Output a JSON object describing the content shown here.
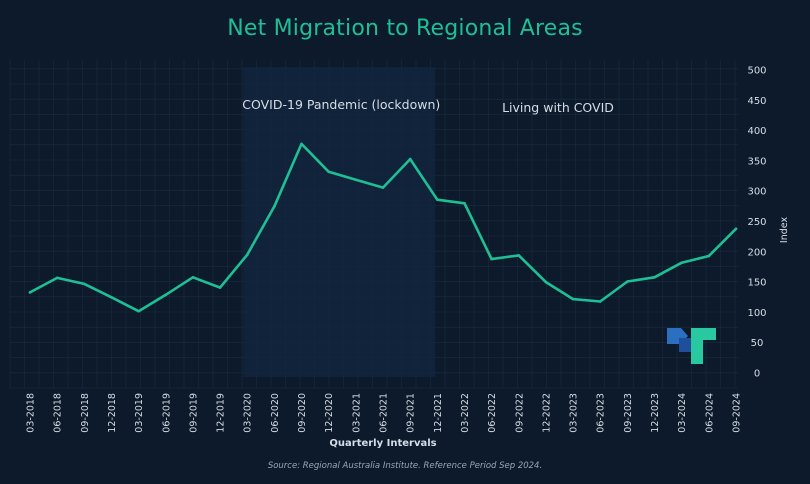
{
  "page": {
    "title": "Net Migration to Regional Areas",
    "source": "Source: Regional Australia Institute. Reference Period Sep 2024."
  },
  "colors": {
    "background": "#0c1a2b",
    "grid": "#1b2d42",
    "line": "#1fbf95",
    "shade": "#13263d",
    "text": "#d6dde6",
    "title": "#1fbf95"
  },
  "chart_data": {
    "type": "line",
    "title": "Net Migration to Regional Areas",
    "xlabel": "Quarterly Intervals",
    "ylabel": "Index",
    "ylim": [
      0,
      500
    ],
    "yticks": [
      0,
      50,
      100,
      150,
      200,
      250,
      300,
      350,
      400,
      450,
      500
    ],
    "grid": true,
    "legend": "none",
    "categories": [
      "03-2018",
      "06-2018",
      "09-2018",
      "12-2018",
      "03-2019",
      "06-2019",
      "09-2019",
      "12-2019",
      "03-2020",
      "06-2020",
      "09-2020",
      "12-2020",
      "03-2021",
      "06-2021",
      "09-2021",
      "12-2021",
      "03-2022",
      "06-2022",
      "09-2022",
      "12-2022",
      "03-2023",
      "06-2023",
      "09-2023",
      "12-2023",
      "03-2024",
      "06-2024",
      "09-2024"
    ],
    "series": [
      {
        "values": [
          133,
          157,
          147,
          125,
          102,
          129,
          158,
          141,
          195,
          275,
          378,
          332,
          319,
          306,
          353,
          286,
          280,
          188,
          194,
          150,
          122,
          118,
          151,
          158,
          182,
          193,
          238
        ]
      }
    ],
    "annotations": [
      {
        "text": "COVID-19 Pandemic (lockdown)",
        "shaded_from": "03-2020",
        "shaded_to": "12-2021"
      },
      {
        "text": "Living with COVID"
      }
    ]
  }
}
